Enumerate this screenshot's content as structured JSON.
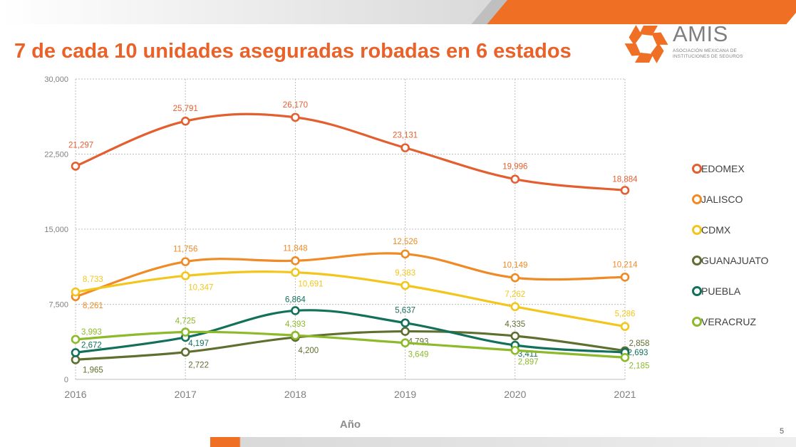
{
  "slide": {
    "title": "7 de cada 10 unidades aseguradas robadas en 6 estados",
    "page_number": "5"
  },
  "logo": {
    "name": "AMIS",
    "subtitle": "ASOCIACIÓN MEXICANA DE INSTITUCIONES DE SEGUROS"
  },
  "chart_data": {
    "type": "line",
    "title": "7 de cada 10 unidades aseguradas robadas en 6 estados",
    "xlabel": "Año",
    "ylabel": "",
    "categories": [
      "2016",
      "2017",
      "2018",
      "2019",
      "2020",
      "2021"
    ],
    "ylim": [
      0,
      30000
    ],
    "yticks": [
      0,
      7500,
      15000,
      22500,
      30000
    ],
    "ytick_labels": [
      "0",
      "7,500",
      "15,000",
      "22,500",
      "30,000"
    ],
    "grid": true,
    "legend_position": "right",
    "series": [
      {
        "name": "EDOMEX",
        "color": "#e35f2f",
        "values": [
          21297,
          25791,
          26170,
          23131,
          19996,
          18884
        ],
        "labels": [
          "21,297",
          "25,791",
          "26,170",
          "23,131",
          "19,996",
          "18,884"
        ]
      },
      {
        "name": "JALISCO",
        "color": "#ef8a25",
        "values": [
          8261,
          11756,
          11848,
          12526,
          10149,
          10214
        ],
        "labels": [
          "8,261",
          "11,756",
          "11,848",
          "12,526",
          "10,149",
          "10,214"
        ]
      },
      {
        "name": "CDMX",
        "color": "#f2c61d",
        "values": [
          8733,
          10347,
          10691,
          9383,
          7262,
          5286
        ],
        "labels": [
          "8,733",
          "10,347",
          "10,691",
          "9,383",
          "7,262",
          "5,286"
        ]
      },
      {
        "name": "GUANAJUATO",
        "color": "#5e6f2f",
        "values": [
          1965,
          2722,
          4200,
          4793,
          4335,
          2858
        ],
        "labels": [
          "1,965",
          "2,722",
          "4,200",
          "4,793",
          "4,335",
          "2,858"
        ]
      },
      {
        "name": "PUEBLA",
        "color": "#13705b",
        "values": [
          2672,
          4197,
          6864,
          5637,
          3411,
          2693
        ],
        "labels": [
          "2,672",
          "4,197",
          "6,864",
          "5,637",
          "3,411",
          "2,693"
        ]
      },
      {
        "name": "VERACRUZ",
        "color": "#8cba2a",
        "values": [
          3993,
          4725,
          4393,
          3649,
          2897,
          2185
        ],
        "labels": [
          "3,993",
          "4,725",
          "4,393",
          "3,649",
          "2,897",
          "2,185"
        ]
      }
    ]
  }
}
